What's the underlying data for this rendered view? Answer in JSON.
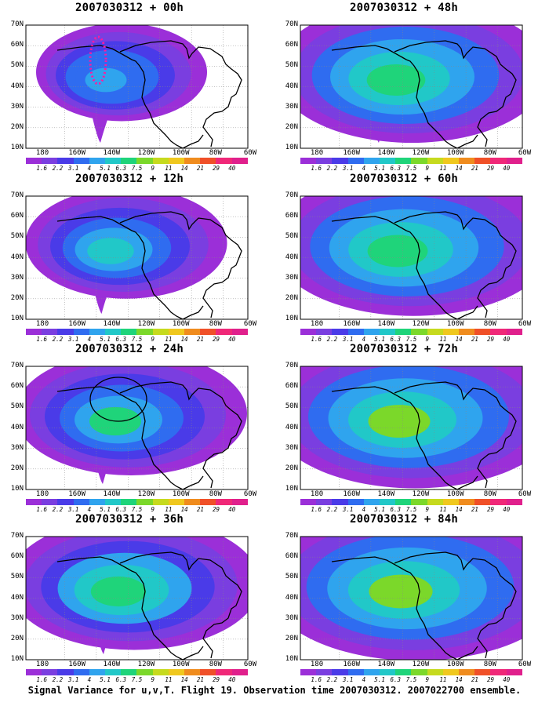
{
  "panels": [
    {
      "title": "2007030312 + 00h",
      "col": 0,
      "row": 0,
      "intensity": 0.35,
      "spread": 0.3,
      "marker": "dots"
    },
    {
      "title": "2007030312 + 12h",
      "col": 0,
      "row": 1,
      "intensity": 0.5,
      "spread": 0.45,
      "marker": "none"
    },
    {
      "title": "2007030312 + 24h",
      "col": 0,
      "row": 2,
      "intensity": 0.6,
      "spread": 0.6,
      "marker": "circle"
    },
    {
      "title": "2007030312 + 36h",
      "col": 0,
      "row": 3,
      "intensity": 0.7,
      "spread": 0.7,
      "marker": "none"
    },
    {
      "title": "2007030312 + 48h",
      "col": 1,
      "row": 0,
      "intensity": 0.75,
      "spread": 0.8,
      "marker": "none"
    },
    {
      "title": "2007030312 + 60h",
      "col": 1,
      "row": 1,
      "intensity": 0.78,
      "spread": 0.85,
      "marker": "none"
    },
    {
      "title": "2007030312 + 72h",
      "col": 1,
      "row": 2,
      "intensity": 0.8,
      "spread": 0.9,
      "marker": "none"
    },
    {
      "title": "2007030312 + 84h",
      "col": 1,
      "row": 3,
      "intensity": 0.82,
      "spread": 0.95,
      "marker": "none"
    }
  ],
  "axes": {
    "lat_labels": [
      "70N",
      "60N",
      "50N",
      "40N",
      "30N",
      "20N",
      "10N"
    ],
    "lon_labels": [
      "180",
      "160W",
      "140W",
      "120W",
      "100W",
      "80W",
      "60W"
    ]
  },
  "colorbar": {
    "labels": [
      "1.6",
      "2.2",
      "3.1",
      "4",
      "5.1",
      "6.3",
      "7.5",
      "9",
      "11",
      "14",
      "21",
      "29",
      "40"
    ],
    "colors": [
      "#9b2fd8",
      "#7a3ee0",
      "#4a3be8",
      "#2f6cf0",
      "#2fa4ee",
      "#21c8c8",
      "#1fd47a",
      "#7bd82a",
      "#c6da1e",
      "#f0c81e",
      "#f08c1e",
      "#f05028",
      "#f02878",
      "#e0208c"
    ]
  },
  "caption": "Signal Variance for u,v,T. Flight 19. Observation time 2007030312. 2007022700 ensemble."
}
